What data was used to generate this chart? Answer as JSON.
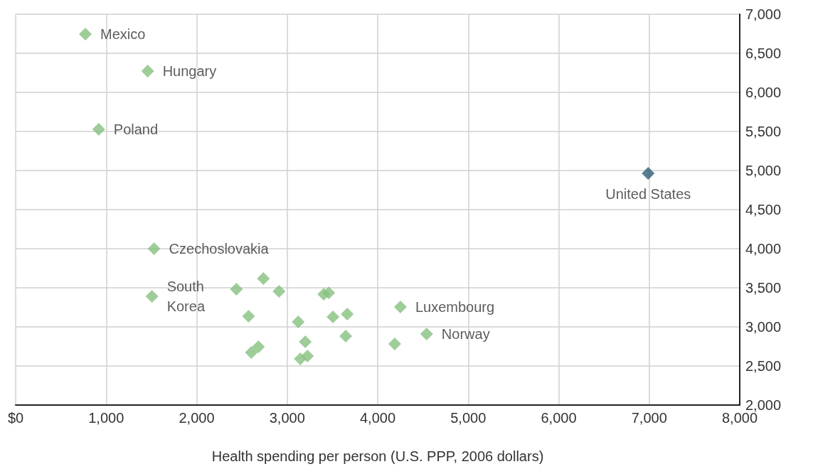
{
  "chart_data": {
    "type": "scatter",
    "xlabel": "Health spending per person (U.S. PPP, 2006 dollars)",
    "x": [
      770,
      1459,
      918,
      6988,
      1529,
      1506,
      4251,
      4541,
      2439,
      2737,
      2910,
      2573,
      3122,
      3404,
      3459,
      3506,
      3663,
      3647,
      3200,
      2682,
      2604,
      3224,
      3145,
      4188
    ],
    "values": [
      6745,
      6273,
      5527,
      4964,
      4000,
      3390,
      3255,
      2909,
      3482,
      3618,
      3455,
      3136,
      3064,
      3418,
      3436,
      3127,
      3164,
      2882,
      2809,
      2745,
      2673,
      2627,
      2591,
      2782
    ],
    "colors": [
      "#86c07f",
      "#86c07f",
      "#86c07f",
      "#2f5e78",
      "#86c07f",
      "#86c07f",
      "#86c07f",
      "#86c07f",
      "#86c07f",
      "#86c07f",
      "#86c07f",
      "#86c07f",
      "#86c07f",
      "#86c07f",
      "#86c07f",
      "#86c07f",
      "#86c07f",
      "#86c07f",
      "#86c07f",
      "#86c07f",
      "#86c07f",
      "#86c07f",
      "#86c07f",
      "#86c07f"
    ],
    "marker": "diamond",
    "grid": true,
    "xlim": [
      0,
      8000
    ],
    "xticks": [
      {
        "value": 0,
        "label": "$0"
      },
      {
        "value": 1000,
        "label": "1,000"
      },
      {
        "value": 2000,
        "label": "2,000"
      },
      {
        "value": 3000,
        "label": "3,000"
      },
      {
        "value": 4000,
        "label": "4,000"
      },
      {
        "value": 5000,
        "label": "5,000"
      },
      {
        "value": 6000,
        "label": "6,000"
      },
      {
        "value": 7000,
        "label": "7,000"
      },
      {
        "value": 8000,
        "label": "8,000"
      }
    ],
    "ylim": [
      2000,
      7000
    ],
    "yticks": [
      {
        "value": 2000,
        "label": "2,000"
      },
      {
        "value": 2500,
        "label": "2,500"
      },
      {
        "value": 3000,
        "label": "3,000"
      },
      {
        "value": 3500,
        "label": "3,500"
      },
      {
        "value": 4000,
        "label": "4,000"
      },
      {
        "value": 4500,
        "label": "4,500"
      },
      {
        "value": 5000,
        "label": "5,000"
      },
      {
        "value": 5500,
        "label": "5,500"
      },
      {
        "value": 6000,
        "label": "6,000"
      },
      {
        "value": 6500,
        "label": "6,500"
      },
      {
        "value": 7000,
        "label": "7,000"
      }
    ],
    "annotations": [
      {
        "text": "Mexico",
        "x": 770,
        "y": 6745
      },
      {
        "text": "Hungary",
        "x": 1459,
        "y": 6273
      },
      {
        "text": "Poland",
        "x": 918,
        "y": 5527
      },
      {
        "text": "United States",
        "x": 6988,
        "y": 4964
      },
      {
        "text": "Czechoslovakia",
        "x": 1529,
        "y": 4000
      },
      {
        "text": "South\nKorea",
        "x": 1506,
        "y": 3390
      },
      {
        "text": "Luxembourg",
        "x": 4251,
        "y": 3255
      },
      {
        "text": "Norway",
        "x": 4541,
        "y": 2909
      }
    ]
  }
}
